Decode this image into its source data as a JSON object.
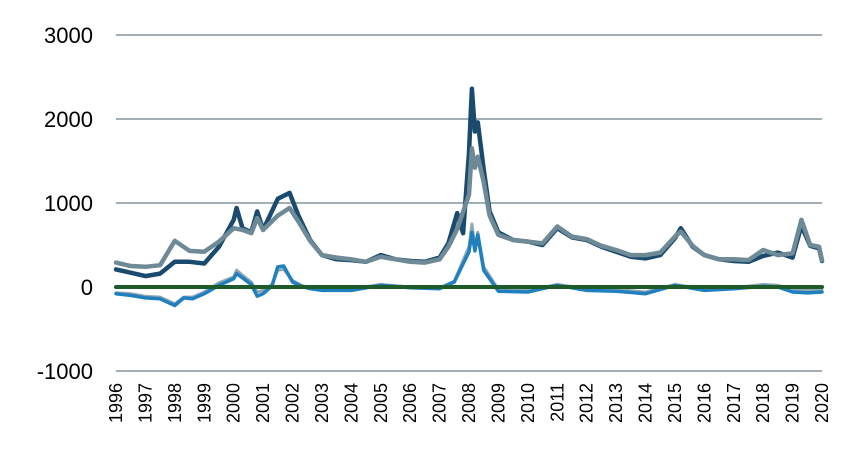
{
  "chart_data": {
    "type": "line",
    "title": "",
    "xlabel": "",
    "ylabel": "",
    "xlim": [
      1996,
      2020
    ],
    "ylim": [
      -1000,
      3000
    ],
    "grid": true,
    "legend": "none",
    "y_ticks": [
      "3000",
      "2000",
      "1000",
      "0",
      "-1000"
    ],
    "x_ticks": [
      "1996",
      "1997",
      "1998",
      "1999",
      "2000",
      "2001",
      "2002",
      "2003",
      "2004",
      "2005",
      "2006",
      "2007",
      "2008",
      "2009",
      "2010",
      "2011",
      "2012",
      "2013",
      "2014",
      "2015",
      "2016",
      "2017",
      "2018",
      "2019",
      "2020"
    ],
    "series": [
      {
        "color": "#1a4a6e",
        "stroke_width": 4.5,
        "points": [
          [
            1996,
            210
          ],
          [
            1996.5,
            170
          ],
          [
            1997,
            130
          ],
          [
            1997.5,
            160
          ],
          [
            1998,
            300
          ],
          [
            1998.5,
            300
          ],
          [
            1999,
            280
          ],
          [
            1999.5,
            480
          ],
          [
            2000,
            800
          ],
          [
            2000.1,
            940
          ],
          [
            2000.3,
            700
          ],
          [
            2000.6,
            650
          ],
          [
            2000.8,
            900
          ],
          [
            2001,
            680
          ],
          [
            2001.5,
            1050
          ],
          [
            2001.9,
            1120
          ],
          [
            2002.2,
            850
          ],
          [
            2002.6,
            560
          ],
          [
            2003,
            380
          ],
          [
            2003.5,
            330
          ],
          [
            2004,
            320
          ],
          [
            2004.5,
            300
          ],
          [
            2005,
            380
          ],
          [
            2005.5,
            330
          ],
          [
            2006,
            310
          ],
          [
            2006.5,
            300
          ],
          [
            2007,
            350
          ],
          [
            2007.3,
            520
          ],
          [
            2007.6,
            880
          ],
          [
            2007.8,
            640
          ],
          [
            2008,
            1600
          ],
          [
            2008.1,
            2360
          ],
          [
            2008.2,
            1850
          ],
          [
            2008.3,
            1960
          ],
          [
            2008.5,
            1400
          ],
          [
            2008.7,
            900
          ],
          [
            2009,
            650
          ],
          [
            2009.5,
            560
          ],
          [
            2010,
            540
          ],
          [
            2010.5,
            500
          ],
          [
            2011,
            700
          ],
          [
            2011.5,
            590
          ],
          [
            2012,
            560
          ],
          [
            2012.5,
            480
          ],
          [
            2013,
            420
          ],
          [
            2013.5,
            360
          ],
          [
            2014,
            340
          ],
          [
            2014.5,
            380
          ],
          [
            2015,
            580
          ],
          [
            2015.2,
            700
          ],
          [
            2015.6,
            480
          ],
          [
            2016,
            380
          ],
          [
            2016.5,
            330
          ],
          [
            2017,
            310
          ],
          [
            2017.5,
            300
          ],
          [
            2018,
            370
          ],
          [
            2018.5,
            410
          ],
          [
            2019,
            350
          ],
          [
            2019.3,
            730
          ],
          [
            2019.6,
            490
          ],
          [
            2019.9,
            460
          ],
          [
            2020,
            310
          ]
        ]
      },
      {
        "color": "#6f8a97",
        "stroke_width": 4.5,
        "points": [
          [
            1996,
            290
          ],
          [
            1996.5,
            250
          ],
          [
            1997,
            240
          ],
          [
            1997.5,
            260
          ],
          [
            1998,
            550
          ],
          [
            1998.5,
            430
          ],
          [
            1999,
            420
          ],
          [
            1999.5,
            540
          ],
          [
            2000,
            700
          ],
          [
            2000.3,
            680
          ],
          [
            2000.6,
            640
          ],
          [
            2000.8,
            820
          ],
          [
            2001,
            680
          ],
          [
            2001.5,
            850
          ],
          [
            2001.9,
            940
          ],
          [
            2002.2,
            780
          ],
          [
            2002.6,
            550
          ],
          [
            2003,
            380
          ],
          [
            2003.5,
            350
          ],
          [
            2004,
            330
          ],
          [
            2004.5,
            300
          ],
          [
            2005,
            360
          ],
          [
            2005.5,
            330
          ],
          [
            2006,
            300
          ],
          [
            2006.5,
            290
          ],
          [
            2007,
            330
          ],
          [
            2007.3,
            480
          ],
          [
            2007.6,
            690
          ],
          [
            2008,
            1100
          ],
          [
            2008.1,
            1650
          ],
          [
            2008.2,
            1420
          ],
          [
            2008.3,
            1550
          ],
          [
            2008.5,
            1250
          ],
          [
            2008.7,
            850
          ],
          [
            2009,
            620
          ],
          [
            2009.5,
            560
          ],
          [
            2010,
            540
          ],
          [
            2010.5,
            520
          ],
          [
            2011,
            720
          ],
          [
            2011.5,
            600
          ],
          [
            2012,
            570
          ],
          [
            2012.5,
            490
          ],
          [
            2013,
            440
          ],
          [
            2013.5,
            380
          ],
          [
            2014,
            380
          ],
          [
            2014.5,
            410
          ],
          [
            2015,
            600
          ],
          [
            2015.2,
            660
          ],
          [
            2015.6,
            490
          ],
          [
            2016,
            380
          ],
          [
            2016.5,
            330
          ],
          [
            2017,
            330
          ],
          [
            2017.5,
            320
          ],
          [
            2018,
            440
          ],
          [
            2018.5,
            380
          ],
          [
            2019,
            400
          ],
          [
            2019.3,
            800
          ],
          [
            2019.6,
            500
          ],
          [
            2019.9,
            480
          ],
          [
            2020,
            320
          ]
        ]
      },
      {
        "color": "#8fa8b0",
        "stroke_width": 3,
        "points": [
          [
            1996,
            -70
          ],
          [
            1996.5,
            -80
          ],
          [
            1997,
            -110
          ],
          [
            1997.5,
            -120
          ],
          [
            1998,
            -200
          ],
          [
            1998.3,
            -120
          ],
          [
            1998.6,
            -120
          ],
          [
            1999,
            -60
          ],
          [
            1999.5,
            50
          ],
          [
            2000,
            120
          ],
          [
            2000.1,
            200
          ],
          [
            2000.3,
            140
          ],
          [
            2000.6,
            60
          ],
          [
            2000.8,
            -60
          ],
          [
            2001,
            -40
          ],
          [
            2001.3,
            30
          ],
          [
            2001.5,
            200
          ],
          [
            2001.7,
            210
          ],
          [
            2002,
            80
          ],
          [
            2002.3,
            20
          ],
          [
            2002.6,
            -10
          ],
          [
            2003,
            -20
          ],
          [
            2004,
            -20
          ],
          [
            2005,
            30
          ],
          [
            2006,
            0
          ],
          [
            2007,
            -10
          ],
          [
            2007.5,
            70
          ],
          [
            2008,
            480
          ],
          [
            2008.1,
            750
          ],
          [
            2008.2,
            480
          ],
          [
            2008.3,
            650
          ],
          [
            2008.5,
            240
          ],
          [
            2009,
            -30
          ],
          [
            2010,
            -40
          ],
          [
            2011,
            30
          ],
          [
            2012,
            -20
          ],
          [
            2013,
            -30
          ],
          [
            2014,
            -60
          ],
          [
            2015,
            30
          ],
          [
            2016,
            -20
          ],
          [
            2017,
            -10
          ],
          [
            2018,
            30
          ],
          [
            2018.5,
            20
          ],
          [
            2019,
            -30
          ],
          [
            2019.5,
            -40
          ],
          [
            2020,
            -40
          ]
        ]
      },
      {
        "color": "#1f7fbf",
        "stroke_width": 3.5,
        "points": [
          [
            1996,
            -80
          ],
          [
            1996.5,
            -100
          ],
          [
            1997,
            -130
          ],
          [
            1997.5,
            -140
          ],
          [
            1998,
            -220
          ],
          [
            1998.3,
            -130
          ],
          [
            1998.6,
            -140
          ],
          [
            1999,
            -80
          ],
          [
            1999.5,
            20
          ],
          [
            2000,
            100
          ],
          [
            2000.1,
            160
          ],
          [
            2000.3,
            110
          ],
          [
            2000.6,
            30
          ],
          [
            2000.8,
            -110
          ],
          [
            2001,
            -80
          ],
          [
            2001.3,
            10
          ],
          [
            2001.5,
            240
          ],
          [
            2001.7,
            250
          ],
          [
            2002,
            60
          ],
          [
            2002.3,
            10
          ],
          [
            2002.6,
            -20
          ],
          [
            2003,
            -40
          ],
          [
            2004,
            -40
          ],
          [
            2005,
            20
          ],
          [
            2006,
            -10
          ],
          [
            2007,
            -20
          ],
          [
            2007.5,
            60
          ],
          [
            2008,
            420
          ],
          [
            2008.1,
            650
          ],
          [
            2008.2,
            430
          ],
          [
            2008.3,
            620
          ],
          [
            2008.5,
            200
          ],
          [
            2009,
            -50
          ],
          [
            2010,
            -60
          ],
          [
            2011,
            20
          ],
          [
            2012,
            -40
          ],
          [
            2013,
            -50
          ],
          [
            2014,
            -80
          ],
          [
            2015,
            20
          ],
          [
            2016,
            -40
          ],
          [
            2017,
            -20
          ],
          [
            2018,
            10
          ],
          [
            2018.5,
            0
          ],
          [
            2019,
            -60
          ],
          [
            2019.5,
            -70
          ],
          [
            2020,
            -60
          ]
        ]
      },
      {
        "color": "#1f5a2a",
        "stroke_width": 4,
        "points": [
          [
            1996,
            0
          ],
          [
            2020,
            0
          ]
        ]
      }
    ]
  }
}
